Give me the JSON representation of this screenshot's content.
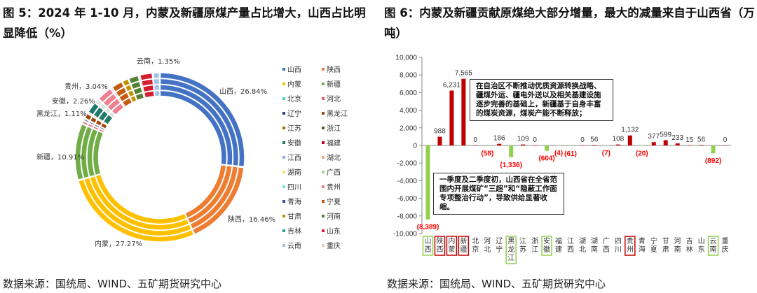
{
  "left": {
    "title": "图 5：2024 年 1-10 月，内蒙及新疆原煤产量占比增大，山西占比明显降低（%）",
    "source": "数据来源：国统局、WIND、五矿期货研究中心"
  },
  "right": {
    "title": "图 6：内蒙及新疆贡献原煤绝大部分增量，最大的减量来自于山西省（万吨）",
    "source": "数据来源：国统局、WIND、五矿期货研究中心",
    "annotation_top": "在自治区不断推动优质资源转换战略、疆煤外运、疆电外送以及相关基建设施逐步完善的基础上，新疆基于自身丰富的煤炭资源，煤炭产能不断释放；",
    "annotation_bottom": "一季度及二季度初，山西省在全省范围内开展煤矿“三超”和“隐蔽工作面专项整治行动”，导致供给显著收缩。"
  },
  "chart_data": [
    {
      "type": "pie",
      "subtype": "multi-ring donut",
      "rings": 4,
      "categories": [
        "山西",
        "陕西",
        "内蒙",
        "新疆",
        "北京",
        "河北",
        "辽宁",
        "黑龙江",
        "江苏",
        "浙江",
        "安徽",
        "福建",
        "江西",
        "湖北",
        "湖南",
        "广西",
        "四川",
        "贵州",
        "青海",
        "宁夏",
        "甘肃",
        "河南",
        "吉林",
        "山东",
        "云南",
        "重庆"
      ],
      "colors": [
        "#4472c4",
        "#ed7d31",
        "#ffc000",
        "#70ad47",
        "#4dd0c8",
        "#e95b6e",
        "#264478",
        "#9e480e",
        "#997300",
        "#43682b",
        "#1f7a6a",
        "#c00018",
        "#8faadc",
        "#f4b183",
        "#ffd966",
        "#a9d18e",
        "#6fe0dc",
        "#ee8090",
        "#2f5597",
        "#c55a11",
        "#bf9000",
        "#548235",
        "#2e9e8c",
        "#d61c2e",
        "#9dc3e6",
        "#f8cbad"
      ],
      "values_outer": [
        26.84,
        16.46,
        27.27,
        10.91,
        0,
        0.6,
        0.5,
        1.11,
        0.2,
        0,
        2.26,
        0.1,
        0.1,
        0,
        0.1,
        0.1,
        0.5,
        3.04,
        0.3,
        2.2,
        1.3,
        2.0,
        0.2,
        2.5,
        1.35,
        0
      ],
      "data_labels": [
        {
          "name": "山西",
          "value": "26.84%"
        },
        {
          "name": "陕西",
          "value": "16.46%"
        },
        {
          "name": "内蒙",
          "value": "27.27%"
        },
        {
          "name": "新疆",
          "value": "10.91%"
        },
        {
          "name": "黑龙江",
          "value": "1.11%"
        },
        {
          "name": "安徽",
          "value": "2.26%"
        },
        {
          "name": "贵州",
          "value": "3.04%"
        },
        {
          "name": "云南",
          "value": "1.35%"
        }
      ],
      "legend": "right"
    },
    {
      "type": "bar",
      "ylim": [
        -10000,
        10000
      ],
      "yticks": [
        10000,
        8000,
        6000,
        4000,
        2000,
        0,
        -2000,
        -4000,
        -6000,
        -8000,
        -10000
      ],
      "categories": [
        "山西",
        "陕西",
        "内蒙",
        "新疆",
        "北京",
        "河北",
        "辽宁",
        "黑龙江",
        "江苏",
        "浙江",
        "安徽",
        "福建",
        "江西",
        "湖北",
        "湖南",
        "广西",
        "四川",
        "贵州",
        "青海",
        "宁夏",
        "甘肃",
        "河南",
        "吉林",
        "山东",
        "云南",
        "重庆"
      ],
      "values": [
        -8389,
        988,
        6231,
        7565,
        0,
        -58,
        186,
        -1336,
        109,
        0,
        -604,
        -4,
        -61,
        0,
        56,
        -7,
        108,
        1132,
        -20,
        377,
        599,
        233,
        15,
        56,
        -892,
        0
      ],
      "highlight_green": [
        "山西",
        "黑龙江",
        "安徽",
        "云南"
      ],
      "highlight_red": [
        "陕西",
        "内蒙",
        "新疆",
        "贵州"
      ],
      "colors": {
        "positive": "#c00000",
        "negative": "#92d050",
        "negative_label": "#ff0000",
        "positive_label": "#333333"
      }
    }
  ]
}
